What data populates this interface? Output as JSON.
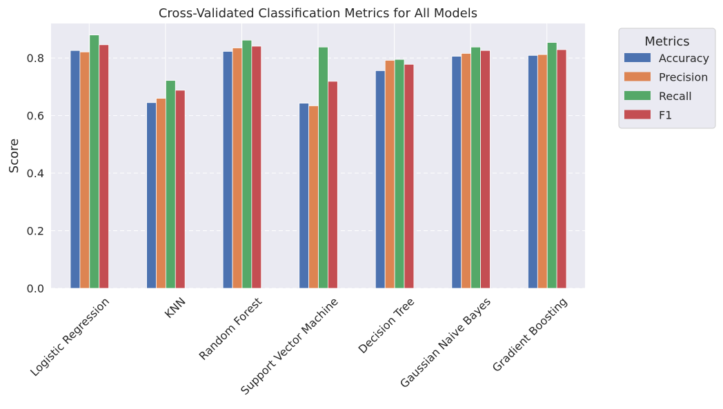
{
  "chart_data": {
    "type": "bar",
    "title": "Cross-Validated Classification Metrics for All Models",
    "xlabel": "",
    "ylabel": "Score",
    "ylim": [
      0,
      0.92
    ],
    "yticks": [
      0.0,
      0.2,
      0.4,
      0.6,
      0.8
    ],
    "ytick_labels": [
      "0.0",
      "0.2",
      "0.4",
      "0.6",
      "0.8"
    ],
    "grid": true,
    "legend_title": "Metrics",
    "legend_position": "outside-top-right",
    "categories": [
      "Logistic Regression",
      "KNN",
      "Random Forest",
      "Support Vector Machine",
      "Decision Tree",
      "Gaussian Naive Bayes",
      "Gradient Boosting"
    ],
    "series": [
      {
        "name": "Accuracy",
        "color": "#4c72b0",
        "values": [
          0.826,
          0.645,
          0.823,
          0.643,
          0.756,
          0.806,
          0.809
        ]
      },
      {
        "name": "Precision",
        "color": "#dd8452",
        "values": [
          0.821,
          0.66,
          0.835,
          0.634,
          0.792,
          0.816,
          0.812
        ]
      },
      {
        "name": "Recall",
        "color": "#55a868",
        "values": [
          0.88,
          0.722,
          0.862,
          0.838,
          0.795,
          0.838,
          0.854
        ]
      },
      {
        "name": "F1",
        "color": "#c44e52",
        "values": [
          0.846,
          0.688,
          0.841,
          0.719,
          0.778,
          0.826,
          0.829
        ]
      }
    ]
  }
}
